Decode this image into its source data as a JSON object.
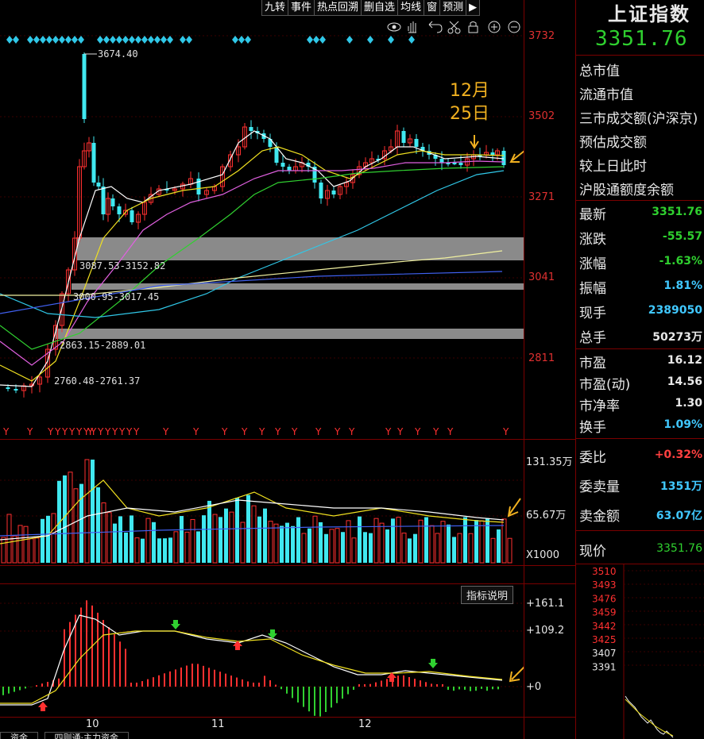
{
  "toolbar": {
    "items": [
      "九转",
      "事件",
      "热点回溯",
      "删自选",
      "均线",
      "窗",
      "预测",
      "▶"
    ]
  },
  "icons": [
    "eye-icon",
    "hand-icon",
    "undo-icon",
    "scissors-icon",
    "lock-icon",
    "zoom-in-icon",
    "zoom-out-icon"
  ],
  "price_axis": [
    "3732",
    "3502",
    "3271",
    "3041",
    "2811"
  ],
  "vol_axis": {
    "top": "131.35万",
    "mid": "65.67万",
    "unit": "X1000"
  },
  "macd_axis": [
    "+161.1",
    "+109.2",
    "+0"
  ],
  "indicator_button": "指标说明",
  "annotation": {
    "line1": "12月",
    "line2": "25日"
  },
  "chart_labels": {
    "high": "3674.40",
    "gap1": "3087.53-3152.82",
    "gap2": "3000.95-3017.45",
    "gap3": "2863.15-2889.01",
    "low": "2760.48-2761.37"
  },
  "months": [
    "10",
    "11",
    "12"
  ],
  "y_markers": [
    "Y",
    "YYY",
    "YYYYYYYYYYYYYY",
    "Y",
    "YY",
    "YY",
    "Y",
    "Y",
    "YY",
    "Y",
    "Y",
    "Y",
    "Y",
    "Y",
    "YY",
    "Y",
    "Y",
    "Y"
  ],
  "right_panel": {
    "title": "上证指数",
    "price": "3351.76",
    "info_labels": [
      "总市值",
      "流通市值",
      "三市成交额(沪深京)",
      "预估成交额",
      "较上日此时",
      "沪股通额度余额"
    ],
    "quotes": [
      {
        "label": "最新",
        "value": "3351.76",
        "color": "#2fd02f"
      },
      {
        "label": "涨跌",
        "value": "-55.57",
        "color": "#2fd02f"
      },
      {
        "label": "涨幅",
        "value": "-1.63%",
        "color": "#2fd02f"
      },
      {
        "label": "振幅",
        "value": "1.81%",
        "color": "#40c8ff"
      },
      {
        "label": "现手",
        "value": "2389050",
        "color": "#40c8ff"
      },
      {
        "label": "总手",
        "value": "50273万",
        "color": "#e8e8e8"
      }
    ],
    "valuation": [
      {
        "label": "市盈",
        "value": "16.12"
      },
      {
        "label": "市盈(动)",
        "value": "14.56"
      },
      {
        "label": "市净率",
        "value": "1.30"
      },
      {
        "label": "换手",
        "value": "1.09%",
        "color": "#40c8ff"
      }
    ],
    "order": [
      {
        "label": "委比",
        "value": "+0.32%",
        "color": "#ff4040"
      },
      {
        "label": "委卖量",
        "value": "1351万",
        "color": "#40c8ff"
      },
      {
        "label": "卖金额",
        "value": "63.07亿",
        "color": "#40c8ff"
      }
    ],
    "current_label": "现价",
    "current_value": "3351.76",
    "mini_axis": [
      "3510",
      "3493",
      "3476",
      "3459",
      "3442",
      "3425",
      "3407",
      "3391"
    ]
  },
  "bottom_tabs": [
    "资金",
    "四则通·主力资金"
  ]
}
